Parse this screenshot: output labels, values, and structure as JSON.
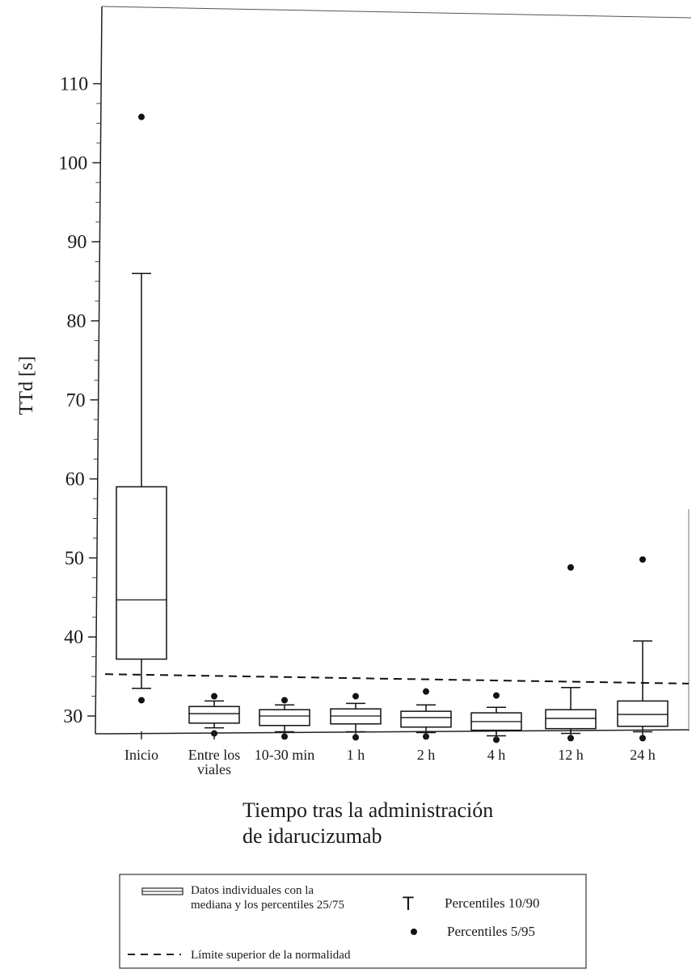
{
  "chart_data": {
    "type": "boxplot",
    "ylabel": "TTd [s]",
    "xlabel_lines": [
      "Tiempo tras la administración",
      "de idarucizumab"
    ],
    "ylim": [
      24,
      112
    ],
    "yticks": [
      30,
      40,
      50,
      60,
      70,
      80,
      90,
      100,
      110
    ],
    "categories": [
      [
        "Inicio"
      ],
      [
        "Entre los",
        "viales"
      ],
      [
        "10-30 min"
      ],
      [
        "1 h"
      ],
      [
        "2 h"
      ],
      [
        "4 h"
      ],
      [
        "12 h"
      ],
      [
        "24 h"
      ]
    ],
    "boxes": [
      {
        "p5": 32.0,
        "p10": 33.5,
        "q1": 37.2,
        "median": 44.7,
        "q3": 59.0,
        "p90": 86.0,
        "p95": 105.8
      },
      {
        "p5": 27.8,
        "p10": 28.5,
        "q1": 29.1,
        "median": 30.3,
        "q3": 31.2,
        "p90": 31.9,
        "p95": 32.5
      },
      {
        "p5": 27.4,
        "p10": 28.0,
        "q1": 28.8,
        "median": 30.0,
        "q3": 30.8,
        "p90": 31.4,
        "p95": 32.0
      },
      {
        "p5": 27.3,
        "p10": 28.0,
        "q1": 29.0,
        "median": 30.0,
        "q3": 30.9,
        "p90": 31.6,
        "p95": 32.5
      },
      {
        "p5": 27.4,
        "p10": 27.9,
        "q1": 28.6,
        "median": 29.8,
        "q3": 30.6,
        "p90": 31.4,
        "p95": 33.1
      },
      {
        "p5": 27.0,
        "p10": 27.5,
        "q1": 28.2,
        "median": 29.3,
        "q3": 30.4,
        "p90": 31.1,
        "p95": 32.6
      },
      {
        "p5": 27.2,
        "p10": 27.8,
        "q1": 28.4,
        "median": 29.7,
        "q3": 30.8,
        "p90": 33.6,
        "p95": 48.8
      },
      {
        "p5": 27.2,
        "p10": 28.0,
        "q1": 28.7,
        "median": 30.2,
        "q3": 31.9,
        "p90": 39.5,
        "p95": 49.8
      }
    ],
    "reference_line": {
      "label": "Límite superior de la normalidad",
      "y_start": 35.3,
      "y_end": 34.1,
      "style": "dashed"
    },
    "legend": {
      "box_label_lines": [
        "Datos individuales con la",
        "mediana y los percentiles 25/75"
      ],
      "whisker_label": "Percentiles 10/90",
      "dot_label": "Percentiles 5/95",
      "line_label": "Límite superior de la normalidad",
      "whisker_glyph": "T"
    },
    "grid": false
  }
}
